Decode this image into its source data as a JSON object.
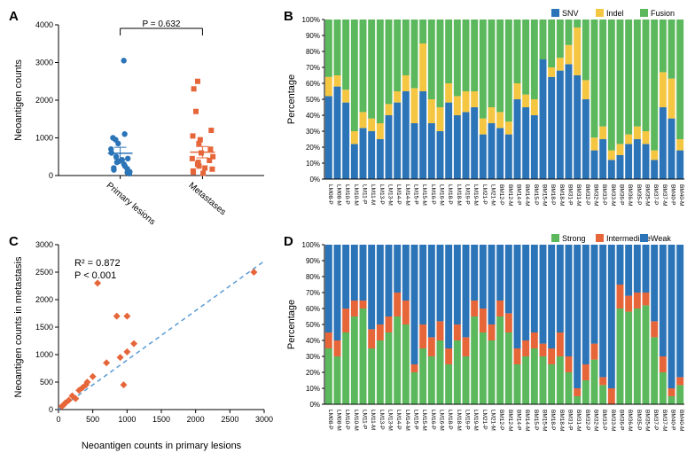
{
  "panels": {
    "A": "A",
    "B": "B",
    "C": "C",
    "D": "D"
  },
  "colors": {
    "primary_dot": "#2b74b8",
    "metastasis_sq": "#e6663a",
    "diamond": "#e6663a",
    "regression": "#5a9bd5",
    "snv": "#2b74b8",
    "indel": "#f5c642",
    "fusion": "#5cb85c",
    "strong": "#5cb85c",
    "intermediate": "#e6663a",
    "weak": "#2b74b8",
    "error_bar": "#555555"
  },
  "panelA": {
    "ylabel": "Neoantigen counts",
    "pvalue": "P = 0.632",
    "ylim": [
      0,
      4000
    ],
    "ytick_step": 1000,
    "categories": [
      "Primary lesions",
      "Metastases"
    ],
    "primary": [
      50,
      80,
      100,
      150,
      180,
      200,
      250,
      300,
      350,
      380,
      420,
      450,
      500,
      600,
      700,
      850,
      950,
      1000,
      1100,
      3050
    ],
    "metastases": [
      60,
      90,
      120,
      170,
      200,
      250,
      300,
      350,
      400,
      450,
      500,
      600,
      700,
      850,
      950,
      1050,
      1200,
      1700,
      2300,
      2500
    ],
    "mean_primary": 590,
    "sem_primary": 160,
    "mean_met": 620,
    "sem_met": 150
  },
  "panelC": {
    "xlabel": "Neoantigen counts in primary lesions",
    "ylabel": "Neoantigen counts in metastasis",
    "r2": "R² = 0.872",
    "p": "P < 0.001",
    "xlim": [
      0,
      3000
    ],
    "xtick_step": 500,
    "ylim": [
      0,
      3000
    ],
    "ytick_step": 500,
    "points": [
      [
        50,
        60
      ],
      [
        80,
        90
      ],
      [
        100,
        120
      ],
      [
        150,
        170
      ],
      [
        200,
        250
      ],
      [
        250,
        200
      ],
      [
        300,
        350
      ],
      [
        350,
        400
      ],
      [
        400,
        450
      ],
      [
        500,
        600
      ],
      [
        700,
        850
      ],
      [
        850,
        1700
      ],
      [
        950,
        450
      ],
      [
        1000,
        1050
      ],
      [
        1100,
        1200
      ],
      [
        570,
        2300
      ],
      [
        2850,
        2500
      ],
      [
        1000,
        1700
      ],
      [
        900,
        950
      ],
      [
        420,
        500
      ]
    ]
  },
  "samples": [
    "LM08-P",
    "LM08-M",
    "LM10-P",
    "LM10-M",
    "LM11-P",
    "LM11-M",
    "LM13-P",
    "LM13-M",
    "LM14-P",
    "LM14-M",
    "LM15-P",
    "LM15-M",
    "LM16-P",
    "LM16-M",
    "LM18-P",
    "LM18-M",
    "LM19-P",
    "LM19-M",
    "LM21-P",
    "LM21-M",
    "BM12-P",
    "BM12-M",
    "BM14-P",
    "BM14-M",
    "BM15-P",
    "BM15-M",
    "BM18-P",
    "BM18-M",
    "BM31-P",
    "BM31-M",
    "BM32-P",
    "BM32-M",
    "BM33-P",
    "BM33-M",
    "BM36-P",
    "BM36-M",
    "BM35-P",
    "BM35-M",
    "BM37-P",
    "BM37-M",
    "BM40-P",
    "BM40-M"
  ],
  "panelB": {
    "ylabel": "Percentage",
    "legend": [
      "SNV",
      "Indel",
      "Fusion"
    ],
    "ylim": [
      0,
      100
    ],
    "ytick_step": 10,
    "data": [
      [
        52,
        12,
        36
      ],
      [
        58,
        7,
        35
      ],
      [
        48,
        8,
        44
      ],
      [
        22,
        8,
        70
      ],
      [
        32,
        10,
        58
      ],
      [
        30,
        8,
        62
      ],
      [
        25,
        10,
        65
      ],
      [
        40,
        7,
        53
      ],
      [
        48,
        7,
        45
      ],
      [
        55,
        10,
        35
      ],
      [
        35,
        22,
        43
      ],
      [
        55,
        30,
        15
      ],
      [
        35,
        15,
        50
      ],
      [
        30,
        15,
        55
      ],
      [
        48,
        12,
        40
      ],
      [
        40,
        12,
        48
      ],
      [
        42,
        13,
        45
      ],
      [
        45,
        10,
        45
      ],
      [
        28,
        10,
        62
      ],
      [
        35,
        10,
        55
      ],
      [
        32,
        10,
        58
      ],
      [
        28,
        8,
        64
      ],
      [
        50,
        10,
        40
      ],
      [
        45,
        8,
        47
      ],
      [
        40,
        10,
        50
      ],
      [
        75,
        0,
        25
      ],
      [
        64,
        6,
        30
      ],
      [
        68,
        8,
        24
      ],
      [
        72,
        12,
        16
      ],
      [
        65,
        30,
        5
      ],
      [
        50,
        12,
        38
      ],
      [
        18,
        8,
        74
      ],
      [
        25,
        8,
        67
      ],
      [
        12,
        6,
        82
      ],
      [
        15,
        7,
        78
      ],
      [
        22,
        6,
        72
      ],
      [
        25,
        8,
        67
      ],
      [
        22,
        8,
        70
      ],
      [
        12,
        6,
        82
      ],
      [
        45,
        22,
        33
      ],
      [
        38,
        25,
        37
      ],
      [
        18,
        7,
        75
      ]
    ]
  },
  "panelD": {
    "ylabel": "Percentage",
    "legend": [
      "Strong",
      "Intermediate",
      "Weak"
    ],
    "ylim": [
      0,
      100
    ],
    "ytick_step": 10,
    "data": [
      [
        35,
        10,
        55
      ],
      [
        30,
        10,
        60
      ],
      [
        45,
        15,
        40
      ],
      [
        55,
        10,
        35
      ],
      [
        60,
        5,
        35
      ],
      [
        35,
        12,
        53
      ],
      [
        40,
        10,
        50
      ],
      [
        45,
        10,
        45
      ],
      [
        55,
        15,
        30
      ],
      [
        50,
        15,
        35
      ],
      [
        20,
        5,
        75
      ],
      [
        35,
        15,
        50
      ],
      [
        30,
        12,
        58
      ],
      [
        40,
        12,
        48
      ],
      [
        25,
        10,
        65
      ],
      [
        40,
        10,
        50
      ],
      [
        30,
        12,
        58
      ],
      [
        55,
        10,
        35
      ],
      [
        45,
        15,
        40
      ],
      [
        40,
        10,
        50
      ],
      [
        55,
        10,
        35
      ],
      [
        45,
        12,
        43
      ],
      [
        25,
        10,
        65
      ],
      [
        30,
        10,
        60
      ],
      [
        35,
        10,
        55
      ],
      [
        30,
        8,
        62
      ],
      [
        25,
        10,
        65
      ],
      [
        30,
        15,
        55
      ],
      [
        20,
        10,
        70
      ],
      [
        5,
        5,
        90
      ],
      [
        15,
        10,
        75
      ],
      [
        28,
        10,
        62
      ],
      [
        12,
        5,
        83
      ],
      [
        0,
        10,
        90
      ],
      [
        60,
        15,
        25
      ],
      [
        58,
        10,
        32
      ],
      [
        60,
        10,
        30
      ],
      [
        62,
        8,
        30
      ],
      [
        42,
        10,
        48
      ],
      [
        20,
        10,
        70
      ],
      [
        5,
        5,
        90
      ],
      [
        12,
        5,
        83
      ]
    ]
  }
}
